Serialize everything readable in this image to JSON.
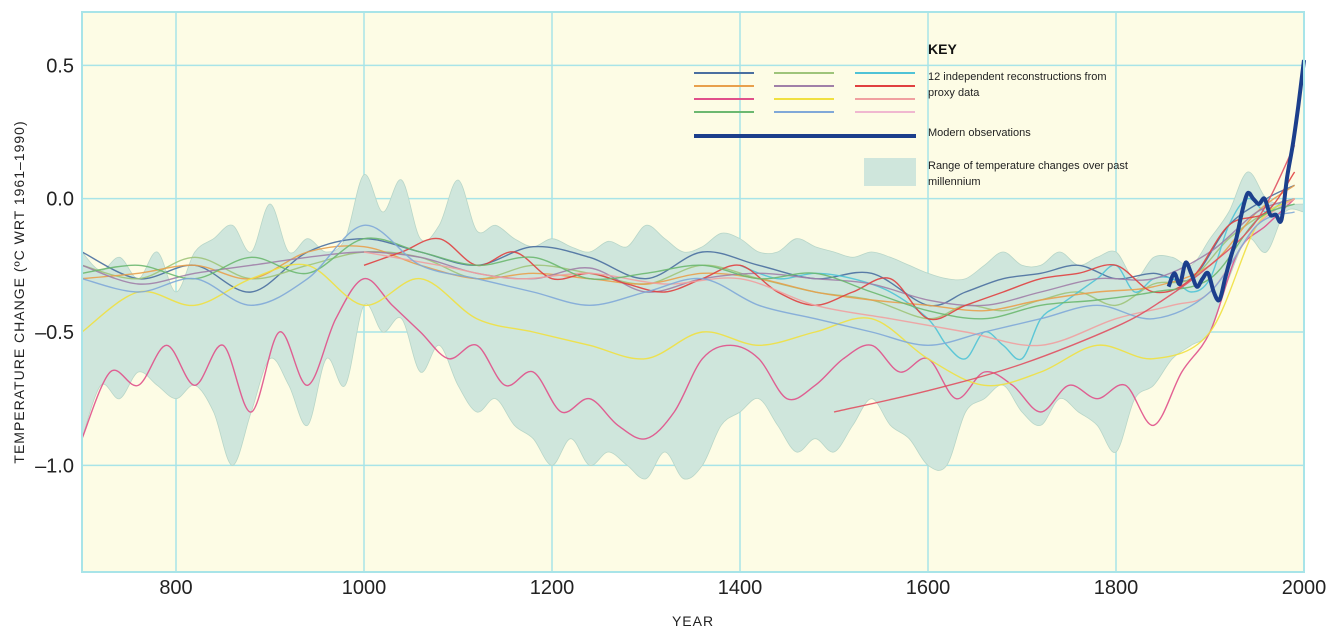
{
  "chart_data": {
    "type": "line",
    "title": "",
    "xlabel": "YEAR",
    "ylabel": "TEMPERATURE CHANGE (ºC WRT 1961–1990)",
    "xlim": [
      700,
      2000
    ],
    "ylim": [
      -1.4,
      0.7
    ],
    "x_ticks": [
      800,
      1000,
      1200,
      1400,
      1600,
      1800,
      2000
    ],
    "y_ticks": [
      0.5,
      0.0,
      -0.5,
      -1.0
    ],
    "y_tick_labels": [
      "0.5",
      "0.0",
      "–0.5",
      "–1.0"
    ],
    "grid": true,
    "legend_position": "top-right",
    "colors": {
      "background": "#fdfce5",
      "grid": "#a8e4e8",
      "frame": "#a8e4e8",
      "band": "#cfe6dc",
      "observations": "#1c3f8c"
    },
    "key": {
      "title": "KEY",
      "reconstructions_label_1": "12 independent reconstructions from",
      "reconstructions_label_2": "proxy data",
      "observations_label": "Modern observations",
      "range_label_1": "Range of temperature changes over past",
      "range_label_2": "millennium",
      "swatch_colors": [
        "#4a6fa0",
        "#9ec47a",
        "#4fc3d6",
        "#e8a04c",
        "#a080a8",
        "#e04040",
        "#e0508a",
        "#f0e040",
        "#f0a0a0",
        "#6cb870",
        "#80a8d8",
        "#f0b8d0"
      ]
    },
    "range_band": {
      "x": [
        700,
        720,
        740,
        760,
        780,
        800,
        820,
        840,
        860,
        880,
        900,
        920,
        940,
        960,
        980,
        1000,
        1020,
        1040,
        1060,
        1080,
        1100,
        1120,
        1140,
        1160,
        1180,
        1200,
        1220,
        1240,
        1260,
        1280,
        1300,
        1320,
        1340,
        1360,
        1380,
        1400,
        1420,
        1440,
        1460,
        1480,
        1500,
        1520,
        1540,
        1560,
        1580,
        1600,
        1620,
        1640,
        1660,
        1680,
        1700,
        1720,
        1740,
        1760,
        1780,
        1800,
        1820,
        1840,
        1860,
        1880,
        1900,
        1920,
        1940,
        1960,
        1980,
        2000
      ],
      "upper": [
        -0.2,
        -0.27,
        -0.22,
        -0.3,
        -0.2,
        -0.35,
        -0.2,
        -0.15,
        -0.1,
        -0.2,
        -0.02,
        -0.2,
        -0.15,
        -0.2,
        -0.15,
        0.09,
        -0.05,
        0.07,
        -0.15,
        -0.1,
        0.07,
        -0.12,
        -0.1,
        -0.15,
        -0.18,
        -0.15,
        -0.18,
        -0.2,
        -0.16,
        -0.18,
        -0.1,
        -0.15,
        -0.2,
        -0.18,
        -0.13,
        -0.15,
        -0.2,
        -0.2,
        -0.15,
        -0.18,
        -0.2,
        -0.22,
        -0.2,
        -0.22,
        -0.25,
        -0.28,
        -0.3,
        -0.3,
        -0.25,
        -0.2,
        -0.25,
        -0.25,
        -0.2,
        -0.25,
        -0.22,
        -0.2,
        -0.3,
        -0.22,
        -0.22,
        -0.25,
        -0.15,
        -0.05,
        0.1,
        0.0,
        -0.02,
        -0.02
      ],
      "lower": [
        -0.9,
        -0.7,
        -0.75,
        -0.65,
        -0.7,
        -0.75,
        -0.7,
        -0.8,
        -1.0,
        -0.8,
        -0.6,
        -0.7,
        -0.85,
        -0.6,
        -0.7,
        -0.4,
        -0.5,
        -0.45,
        -0.65,
        -0.55,
        -0.7,
        -0.8,
        -0.75,
        -0.85,
        -0.9,
        -1.0,
        -0.9,
        -1.0,
        -0.95,
        -1.0,
        -1.05,
        -0.95,
        -1.05,
        -1.0,
        -0.85,
        -0.8,
        -0.75,
        -0.85,
        -0.95,
        -0.9,
        -0.95,
        -0.85,
        -0.75,
        -0.85,
        -0.9,
        -1.0,
        -1.0,
        -0.8,
        -0.75,
        -0.7,
        -0.8,
        -0.85,
        -0.75,
        -0.8,
        -0.85,
        -0.95,
        -0.75,
        -0.7,
        -0.6,
        -0.55,
        -0.5,
        -0.3,
        -0.15,
        -0.2,
        -0.05,
        -0.05
      ]
    },
    "series": [
      {
        "color": "#4a6fa0",
        "x": [
          700,
          760,
          820,
          880,
          940,
          1000,
          1060,
          1120,
          1180,
          1240,
          1300,
          1360,
          1420,
          1480,
          1540,
          1600,
          1640,
          1680,
          1720,
          1760,
          1800,
          1840,
          1880,
          1920,
          1960,
          1990
        ],
        "values": [
          -0.2,
          -0.3,
          -0.25,
          -0.35,
          -0.2,
          -0.15,
          -0.2,
          -0.25,
          -0.18,
          -0.22,
          -0.3,
          -0.2,
          -0.25,
          -0.3,
          -0.28,
          -0.4,
          -0.35,
          -0.3,
          -0.28,
          -0.25,
          -0.3,
          -0.28,
          -0.3,
          -0.1,
          0.0,
          0.05
        ]
      },
      {
        "color": "#9ec47a",
        "x": [
          700,
          760,
          820,
          880,
          940,
          1000,
          1060,
          1120,
          1180,
          1240,
          1300,
          1360,
          1420,
          1480,
          1540,
          1600,
          1640,
          1680,
          1720,
          1760,
          1800,
          1840,
          1880,
          1920,
          1960,
          1990
        ],
        "values": [
          -0.25,
          -0.3,
          -0.22,
          -0.3,
          -0.25,
          -0.2,
          -0.22,
          -0.3,
          -0.25,
          -0.28,
          -0.32,
          -0.25,
          -0.3,
          -0.35,
          -0.38,
          -0.45,
          -0.4,
          -0.42,
          -0.38,
          -0.35,
          -0.4,
          -0.32,
          -0.3,
          -0.15,
          -0.05,
          0.0
        ]
      },
      {
        "color": "#4fc3d6",
        "x": [
          1400,
          1440,
          1480,
          1520,
          1560,
          1600,
          1620,
          1640,
          1660,
          1680,
          1700,
          1720,
          1740,
          1760,
          1780,
          1800,
          1820,
          1840,
          1860,
          1880,
          1900,
          1920,
          1940,
          1960,
          1980
        ],
        "values": [
          -0.25,
          -0.3,
          -0.28,
          -0.3,
          -0.35,
          -0.45,
          -0.55,
          -0.6,
          -0.5,
          -0.55,
          -0.6,
          -0.45,
          -0.4,
          -0.35,
          -0.3,
          -0.25,
          -0.35,
          -0.3,
          -0.3,
          -0.35,
          -0.3,
          -0.1,
          0.0,
          -0.05,
          0.0
        ]
      },
      {
        "color": "#e8a04c",
        "x": [
          700,
          760,
          820,
          880,
          940,
          1000,
          1060,
          1120,
          1180,
          1240,
          1300,
          1360,
          1420,
          1480,
          1540,
          1600,
          1660,
          1720,
          1780,
          1840,
          1900,
          1950,
          1990
        ],
        "values": [
          -0.3,
          -0.28,
          -0.25,
          -0.3,
          -0.2,
          -0.18,
          -0.25,
          -0.3,
          -0.28,
          -0.3,
          -0.32,
          -0.28,
          -0.3,
          -0.35,
          -0.38,
          -0.4,
          -0.42,
          -0.38,
          -0.35,
          -0.33,
          -0.25,
          -0.05,
          0.05
        ]
      },
      {
        "color": "#a080a8",
        "x": [
          700,
          760,
          820,
          880,
          940,
          1000,
          1060,
          1120,
          1180,
          1240,
          1300,
          1360,
          1420,
          1480,
          1540,
          1600,
          1660,
          1720,
          1780,
          1840,
          1900,
          1950,
          1990
        ],
        "values": [
          -0.25,
          -0.32,
          -0.28,
          -0.25,
          -0.22,
          -0.2,
          -0.22,
          -0.28,
          -0.3,
          -0.26,
          -0.35,
          -0.3,
          -0.28,
          -0.3,
          -0.32,
          -0.38,
          -0.4,
          -0.35,
          -0.3,
          -0.3,
          -0.2,
          -0.05,
          0.0
        ]
      },
      {
        "color": "#e04040",
        "x": [
          1000,
          1040,
          1080,
          1120,
          1160,
          1200,
          1240,
          1280,
          1320,
          1360,
          1400,
          1440,
          1480,
          1520,
          1560,
          1600,
          1640,
          1680,
          1720,
          1760,
          1800,
          1840,
          1880,
          1920,
          1960,
          1990
        ],
        "values": [
          -0.25,
          -0.2,
          -0.15,
          -0.25,
          -0.2,
          -0.3,
          -0.28,
          -0.32,
          -0.35,
          -0.3,
          -0.25,
          -0.35,
          -0.4,
          -0.35,
          -0.3,
          -0.45,
          -0.4,
          -0.35,
          -0.3,
          -0.28,
          -0.25,
          -0.35,
          -0.3,
          -0.1,
          -0.05,
          0.1
        ]
      },
      {
        "color": "#e0508a",
        "x": [
          700,
          730,
          760,
          790,
          820,
          850,
          880,
          910,
          940,
          970,
          1000,
          1030,
          1060,
          1090,
          1120,
          1150,
          1180,
          1210,
          1240,
          1270,
          1300,
          1330,
          1360,
          1390,
          1420,
          1450,
          1480,
          1510,
          1540,
          1570,
          1600,
          1630,
          1660,
          1690,
          1720,
          1750,
          1780,
          1810,
          1840,
          1870,
          1900,
          1930,
          1960,
          1990
        ],
        "values": [
          -0.9,
          -0.65,
          -0.7,
          -0.55,
          -0.7,
          -0.55,
          -0.8,
          -0.5,
          -0.7,
          -0.45,
          -0.3,
          -0.4,
          -0.5,
          -0.6,
          -0.55,
          -0.7,
          -0.65,
          -0.8,
          -0.75,
          -0.85,
          -0.9,
          -0.8,
          -0.6,
          -0.55,
          -0.6,
          -0.75,
          -0.7,
          -0.6,
          -0.55,
          -0.65,
          -0.6,
          -0.75,
          -0.65,
          -0.7,
          -0.8,
          -0.7,
          -0.75,
          -0.7,
          -0.85,
          -0.65,
          -0.5,
          -0.2,
          -0.1,
          0.0
        ]
      },
      {
        "color": "#f0e040",
        "x": [
          700,
          760,
          820,
          880,
          940,
          1000,
          1060,
          1120,
          1180,
          1240,
          1300,
          1360,
          1420,
          1480,
          1540,
          1600,
          1660,
          1720,
          1780,
          1840,
          1900,
          1950,
          1990
        ],
        "values": [
          -0.5,
          -0.35,
          -0.4,
          -0.3,
          -0.25,
          -0.4,
          -0.3,
          -0.45,
          -0.5,
          -0.55,
          -0.6,
          -0.5,
          -0.55,
          -0.5,
          -0.45,
          -0.6,
          -0.7,
          -0.65,
          -0.55,
          -0.6,
          -0.5,
          -0.1,
          0.0
        ]
      },
      {
        "color": "#f0a0a0",
        "x": [
          1000,
          1080,
          1160,
          1240,
          1320,
          1400,
          1480,
          1560,
          1640,
          1720,
          1800,
          1860,
          1900,
          1950,
          1990
        ],
        "values": [
          -0.2,
          -0.25,
          -0.3,
          -0.28,
          -0.32,
          -0.3,
          -0.4,
          -0.45,
          -0.5,
          -0.55,
          -0.45,
          -0.4,
          -0.35,
          -0.1,
          0.0
        ]
      },
      {
        "color": "#6cb870",
        "x": [
          700,
          760,
          820,
          880,
          940,
          1000,
          1060,
          1120,
          1180,
          1240,
          1300,
          1360,
          1420,
          1480,
          1540,
          1600,
          1660,
          1720,
          1780,
          1840,
          1900,
          1950,
          1990
        ],
        "values": [
          -0.28,
          -0.25,
          -0.3,
          -0.22,
          -0.28,
          -0.15,
          -0.2,
          -0.25,
          -0.22,
          -0.3,
          -0.28,
          -0.25,
          -0.3,
          -0.28,
          -0.35,
          -0.42,
          -0.45,
          -0.4,
          -0.38,
          -0.35,
          -0.3,
          -0.08,
          -0.02
        ]
      },
      {
        "color": "#80a8d8",
        "x": [
          700,
          760,
          820,
          880,
          940,
          1000,
          1060,
          1120,
          1180,
          1240,
          1300,
          1360,
          1420,
          1480,
          1540,
          1600,
          1660,
          1720,
          1780,
          1840,
          1900,
          1950,
          1990
        ],
        "values": [
          -0.3,
          -0.35,
          -0.3,
          -0.4,
          -0.3,
          -0.1,
          -0.25,
          -0.3,
          -0.35,
          -0.4,
          -0.35,
          -0.3,
          -0.4,
          -0.45,
          -0.5,
          -0.55,
          -0.5,
          -0.45,
          -0.4,
          -0.45,
          -0.35,
          -0.1,
          -0.05
        ]
      },
      {
        "color": "#e05060",
        "x": [
          1500,
          1600,
          1700,
          1800,
          1850,
          1900,
          1950,
          1990
        ],
        "values": [
          -0.8,
          -0.72,
          -0.62,
          -0.48,
          -0.38,
          -0.25,
          -0.08,
          0.2
        ]
      }
    ],
    "observations": {
      "name": "Modern observations",
      "color": "#1c3f8c",
      "x": [
        1856,
        1862,
        1868,
        1874,
        1880,
        1886,
        1892,
        1898,
        1904,
        1910,
        1916,
        1922,
        1928,
        1934,
        1940,
        1946,
        1952,
        1958,
        1964,
        1970,
        1976,
        1982,
        1988,
        1994,
        2000
      ],
      "values": [
        -0.33,
        -0.28,
        -0.32,
        -0.24,
        -0.28,
        -0.33,
        -0.3,
        -0.28,
        -0.35,
        -0.38,
        -0.3,
        -0.22,
        -0.15,
        -0.05,
        0.02,
        0.0,
        -0.02,
        0.0,
        -0.06,
        -0.06,
        -0.08,
        0.08,
        0.2,
        0.35,
        0.52
      ]
    }
  }
}
